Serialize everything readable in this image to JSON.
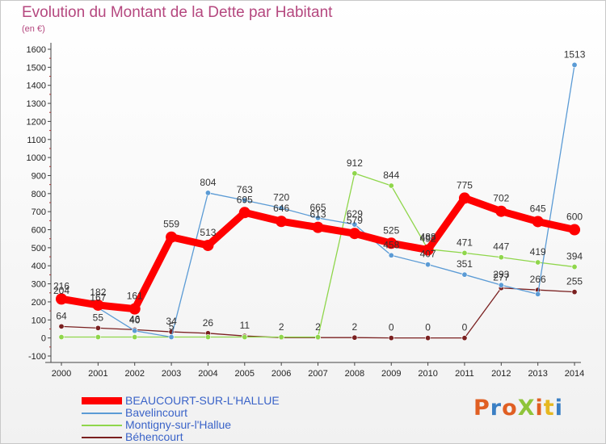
{
  "chart_data": {
    "type": "line",
    "title": "Evolution du Montant de la Dette par Habitant",
    "subtitle": "(en €)",
    "x": [
      "2000",
      "2001",
      "2002",
      "2003",
      "2004",
      "2005",
      "2006",
      "2007",
      "2008",
      "2009",
      "2010",
      "2011",
      "2012",
      "2013",
      "2014"
    ],
    "yticks": [
      "-100",
      "0",
      "100",
      "200",
      "300",
      "400",
      "500",
      "600",
      "700",
      "800",
      "900",
      "1000",
      "1100",
      "1200",
      "1300",
      "1400",
      "1500",
      "1600"
    ],
    "ylim": [
      -100,
      1600
    ],
    "grid": false,
    "series": [
      {
        "name": "BEAUCOURT-SUR-L'HALLUE",
        "color": "#ff0000",
        "values": [
          216,
          182,
          161,
          559,
          513,
          695,
          646,
          613,
          579,
          525,
          488,
          775,
          702,
          645,
          600
        ]
      },
      {
        "name": "Bavelincourt",
        "color": "#5b9bd5",
        "values": [
          204,
          167,
          40,
          5,
          804,
          763,
          720,
          665,
          629,
          458,
          407,
          351,
          293,
          243,
          1513
        ]
      },
      {
        "name": "Montigny-sur-l'Hallue",
        "color": "#8fd64b",
        "values": [
          5,
          5,
          5,
          5,
          5,
          5,
          5,
          5,
          912,
          844,
          492,
          471,
          447,
          419,
          394
        ]
      },
      {
        "name": "Béhencourt",
        "color": "#7a2020",
        "values": [
          64,
          55,
          46,
          34,
          26,
          11,
          2,
          2,
          2,
          0,
          0,
          0,
          277,
          266,
          255
        ]
      }
    ],
    "data_labels": [
      [
        "216",
        "182",
        "161",
        "559",
        "513",
        "695",
        "646",
        "613",
        "579",
        "525",
        "488",
        "775",
        "702",
        "645",
        "600"
      ],
      [
        "204",
        "167",
        "40",
        "5",
        "804",
        "763",
        "720",
        "665",
        "629",
        "458",
        "407",
        "351",
        "293",
        "",
        "1513"
      ],
      [
        "",
        "",
        "",
        "",
        "",
        "",
        "",
        "",
        "912",
        "844",
        "492",
        "471",
        "447",
        "419",
        "394"
      ],
      [
        "64",
        "55",
        "46",
        "34",
        "26",
        "11",
        "2",
        "2",
        "2",
        "0",
        "0",
        "0",
        "277",
        "266",
        "255"
      ]
    ]
  },
  "brand": {
    "text": "ProXiti",
    "colors": [
      "#e05f23",
      "#3a7fc4",
      "#e05f23",
      "#8fc43a",
      "#e05f23",
      "#e6b820",
      "#3a7fc4"
    ]
  }
}
